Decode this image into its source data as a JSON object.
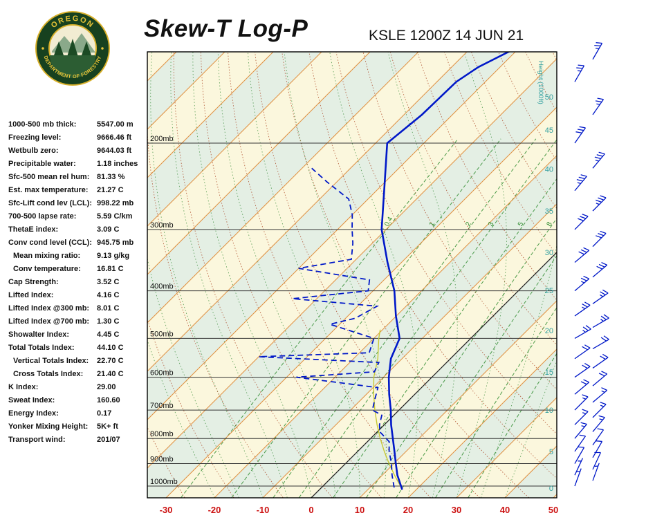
{
  "header": {
    "title": "Skew-T Log-P",
    "station_line": "KSLE 1200Z 14 JUN 21"
  },
  "logo": {
    "top_text": "OREGON",
    "bottom_text": "DEPARTMENT OF FORESTRY"
  },
  "indices": [
    {
      "label": "1000-500 mb thick:",
      "value": "5547.00 m",
      "indent": false
    },
    {
      "label": "Freezing level:",
      "value": "9666.46 ft",
      "indent": false
    },
    {
      "label": "Wetbulb zero:",
      "value": "9644.03 ft",
      "indent": false
    },
    {
      "label": "Precipitable water:",
      "value": "1.18 inches",
      "indent": false
    },
    {
      "label": "Sfc-500 mean rel hum:",
      "value": "81.33 %",
      "indent": false
    },
    {
      "label": "Est. max temperature:",
      "value": "21.27 C",
      "indent": false
    },
    {
      "label": "Sfc-Lift cond lev (LCL):",
      "value": "998.22 mb",
      "indent": false
    },
    {
      "label": "700-500 lapse rate:",
      "value": "5.59 C/km",
      "indent": false
    },
    {
      "label": "ThetaE index:",
      "value": "3.09 C",
      "indent": false
    },
    {
      "label": "Conv cond level (CCL):",
      "value": "945.75 mb",
      "indent": false
    },
    {
      "label": "Mean mixing ratio:",
      "value": "9.13 g/kg",
      "indent": true
    },
    {
      "label": "Conv temperature:",
      "value": "16.81 C",
      "indent": true
    },
    {
      "label": "Cap Strength:",
      "value": "3.52 C",
      "indent": false
    },
    {
      "label": "Lifted Index:",
      "value": "4.16 C",
      "indent": false
    },
    {
      "label": "Lifted Index @300 mb:",
      "value": "8.01 C",
      "indent": false
    },
    {
      "label": "Lifted Index @700 mb:",
      "value": "1.30 C",
      "indent": false
    },
    {
      "label": "Showalter Index:",
      "value": "4.45 C",
      "indent": false
    },
    {
      "label": "Total Totals Index:",
      "value": "44.10 C",
      "indent": false
    },
    {
      "label": "Vertical Totals Index:",
      "value": "22.70 C",
      "indent": true
    },
    {
      "label": "Cross Totals Index:",
      "value": "21.40 C",
      "indent": true
    },
    {
      "label": "K Index:",
      "value": "29.00",
      "indent": false
    },
    {
      "label": "Sweat Index:",
      "value": "160.60",
      "indent": false
    },
    {
      "label": "Energy Index:",
      "value": "0.17",
      "indent": false
    },
    {
      "label": "Yonker Mixing Height:",
      "value": "5K+ ft",
      "indent": false
    },
    {
      "label": "Transport wind:",
      "value": "201/07",
      "indent": false
    }
  ],
  "chart_data": {
    "type": "skew-t-log-p",
    "title": "Skew-T Log-P",
    "station": "KSLE 1200Z 14 JUN 21",
    "pressure_levels_mb": [
      200,
      300,
      400,
      500,
      600,
      700,
      800,
      900,
      1000
    ],
    "pressure_labels": [
      "200mb",
      "300mb",
      "400mb",
      "500mb",
      "600mb",
      "700mb",
      "800mb",
      "900mb",
      "1000mb"
    ],
    "temp_ticks_c": [
      -30,
      -20,
      -10,
      0,
      10,
      20,
      30,
      40,
      50
    ],
    "height_ticks_kft": [
      50,
      45,
      40,
      35,
      30,
      25,
      20,
      15,
      10,
      5,
      0
    ],
    "height_axis_label": "Height (1000ft)",
    "mixing_ratio_labels_gkg": [
      0.4,
      1,
      2,
      3,
      5,
      8
    ],
    "temperature_profile": [
      [
        1017,
        17.1
      ],
      [
        950,
        13.1
      ],
      [
        900,
        10.4
      ],
      [
        850,
        7.6
      ],
      [
        800,
        4.6
      ],
      [
        750,
        1.4
      ],
      [
        700,
        -1.7
      ],
      [
        650,
        -5.3
      ],
      [
        600,
        -8.9
      ],
      [
        550,
        -12.3
      ],
      [
        500,
        -14.7
      ],
      [
        450,
        -20.1
      ],
      [
        400,
        -25.6
      ],
      [
        350,
        -32.9
      ],
      [
        300,
        -40.9
      ],
      [
        250,
        -48.4
      ],
      [
        200,
        -57.6
      ],
      [
        175,
        -56.3
      ],
      [
        150,
        -56.0
      ],
      [
        140,
        -54.5
      ],
      [
        130,
        -51.3
      ]
    ],
    "dewpoint_profile": [
      [
        1007,
        15
      ],
      [
        950,
        12
      ],
      [
        900,
        9.5
      ],
      [
        850,
        6.5
      ],
      [
        812,
        4.5
      ],
      [
        775,
        0.5
      ],
      [
        750,
        -1
      ],
      [
        717,
        -2.5
      ],
      [
        700,
        -5.5
      ],
      [
        670,
        -7
      ],
      [
        630,
        -9
      ],
      [
        600,
        -28
      ],
      [
        585,
        -13
      ],
      [
        560,
        -14
      ],
      [
        545,
        -40
      ],
      [
        535,
        -18
      ],
      [
        500,
        -20
      ],
      [
        468,
        -32
      ],
      [
        455,
        -28
      ],
      [
        430,
        -26
      ],
      [
        415,
        -45
      ],
      [
        400,
        -31
      ],
      [
        380,
        -33
      ],
      [
        360,
        -50
      ],
      [
        345,
        -41
      ],
      [
        320,
        -44
      ],
      [
        300,
        -47
      ],
      [
        280,
        -50
      ],
      [
        260,
        -54
      ],
      [
        240,
        -62
      ],
      [
        225,
        -68
      ]
    ],
    "parcel_path": [
      [
        1000,
        16
      ],
      [
        950,
        12.5
      ],
      [
        900,
        9
      ],
      [
        850,
        5.5
      ],
      [
        800,
        2
      ],
      [
        750,
        -1.5
      ],
      [
        700,
        -5
      ],
      [
        650,
        -8.5
      ],
      [
        600,
        -12
      ],
      [
        550,
        -15
      ],
      [
        500,
        -19
      ],
      [
        480,
        -20.5
      ]
    ],
    "winds": [
      [
        1000,
        200,
        5
      ],
      [
        975,
        200,
        7
      ],
      [
        950,
        205,
        7
      ],
      [
        925,
        205,
        10
      ],
      [
        900,
        210,
        10
      ],
      [
        875,
        210,
        10
      ],
      [
        850,
        215,
        10
      ],
      [
        825,
        215,
        10
      ],
      [
        800,
        220,
        15
      ],
      [
        775,
        220,
        15
      ],
      [
        750,
        225,
        15
      ],
      [
        725,
        225,
        15
      ],
      [
        700,
        225,
        15
      ],
      [
        675,
        230,
        15
      ],
      [
        650,
        230,
        20
      ],
      [
        625,
        230,
        20
      ],
      [
        600,
        235,
        20
      ],
      [
        575,
        235,
        20
      ],
      [
        550,
        235,
        20
      ],
      [
        525,
        240,
        20
      ],
      [
        500,
        240,
        25
      ],
      [
        475,
        240,
        25
      ],
      [
        450,
        235,
        25
      ],
      [
        425,
        235,
        25
      ],
      [
        400,
        230,
        25
      ],
      [
        375,
        230,
        30
      ],
      [
        350,
        230,
        30
      ],
      [
        325,
        225,
        30
      ],
      [
        300,
        225,
        30
      ],
      [
        275,
        225,
        35
      ],
      [
        250,
        220,
        35
      ],
      [
        225,
        220,
        35
      ],
      [
        200,
        215,
        30
      ],
      [
        175,
        215,
        25
      ],
      [
        150,
        210,
        25
      ],
      [
        135,
        210,
        25
      ]
    ]
  },
  "colors": {
    "temperature": "#0018c8",
    "dewpoint": "#0018c8",
    "parcel": "#c8c832",
    "isotherm": "#e09040",
    "dry_adiabat": "#aa4422",
    "moist_adiabat": "#3d8f3d",
    "mixing_ratio": "#2e8b2e",
    "band_yellow": "#fbf7dd",
    "band_green": "#e4efe4",
    "axis_red": "#cc1111",
    "height_teal": "#2f9e9e",
    "wind": "#0018c8",
    "logo_green": "#17411f",
    "logo_gold": "#e9c437"
  }
}
